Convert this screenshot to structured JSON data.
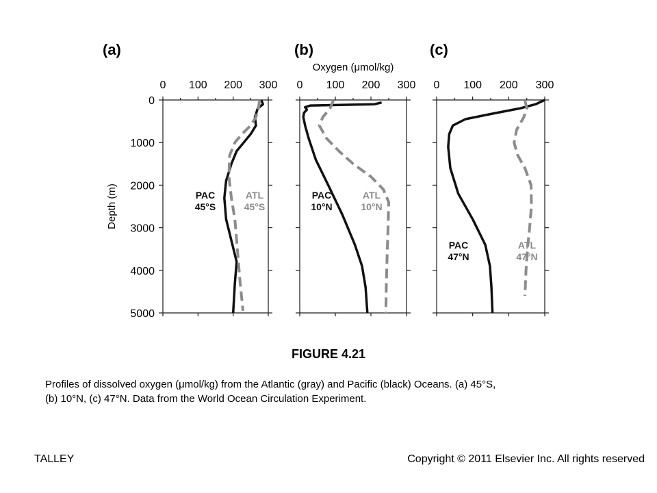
{
  "figure": {
    "title": "FIGURE 4.21",
    "caption_line1": "Profiles of dissolved oxygen (μmol/kg) from the Atlantic (gray) and Pacific (black) Oceans. (a) 45°S,",
    "caption_line2": "(b) 10°N, (c) 47°N. Data from the World Ocean Circulation Experiment.",
    "footer_left": "TALLEY",
    "footer_right": "Copyright © 2011 Elsevier Inc. All rights reserved"
  },
  "colors": {
    "pacific": "#111111",
    "atlantic": "#8c8c8c"
  },
  "chart_data": [
    {
      "type": "line",
      "panel": "(a)",
      "xlabel": "",
      "ylabel": "Depth (m)",
      "xlim": [
        0,
        300
      ],
      "ylim": [
        0,
        5000
      ],
      "y_inverted": true,
      "x_ticks": [
        "0",
        "100",
        "200",
        "300"
      ],
      "y_ticks": [
        "0",
        "1000",
        "2000",
        "3000",
        "4000",
        "5000"
      ],
      "series": [
        {
          "name": "PAC 45°S",
          "label_lines": [
            "PAC",
            "45°S"
          ],
          "style": "solid",
          "color": "#111111",
          "x": [
            280,
            285,
            270,
            262,
            265,
            250,
            230,
            210,
            195,
            180,
            175,
            180,
            195,
            210,
            205,
            200
          ],
          "y": [
            0,
            100,
            200,
            400,
            600,
            800,
            1000,
            1200,
            1500,
            1900,
            2300,
            2800,
            3300,
            3800,
            4300,
            5000
          ]
        },
        {
          "name": "ATL 45°S",
          "label_lines": [
            "ATL",
            "45°S"
          ],
          "style": "dashed",
          "color": "#8c8c8c",
          "x": [
            275,
            272,
            265,
            250,
            225,
            205,
            190,
            188,
            195,
            205,
            210,
            215,
            220,
            225,
            228
          ],
          "y": [
            0,
            200,
            400,
            600,
            800,
            1000,
            1300,
            1800,
            2300,
            2800,
            3300,
            3800,
            4300,
            4700,
            4950
          ]
        }
      ]
    },
    {
      "type": "line",
      "panel": "(b)",
      "xlabel": "Oxygen (μmol/kg)",
      "ylabel": "",
      "xlim": [
        0,
        300
      ],
      "ylim": [
        0,
        5000
      ],
      "y_inverted": true,
      "x_ticks": [
        "0",
        "100",
        "200",
        "300"
      ],
      "y_ticks": [],
      "series": [
        {
          "name": "PAC 10°N",
          "label_lines": [
            "PAC",
            "10°N"
          ],
          "style": "solid",
          "color": "#111111",
          "x": [
            230,
            210,
            30,
            15,
            20,
            12,
            10,
            15,
            25,
            45,
            80,
            120,
            155,
            175,
            185,
            190
          ],
          "y": [
            60,
            100,
            130,
            170,
            230,
            300,
            400,
            600,
            900,
            1400,
            2000,
            2700,
            3400,
            3900,
            4400,
            5000
          ]
        },
        {
          "name": "ATL 10°N",
          "label_lines": [
            "ATL",
            "10°N"
          ],
          "style": "dashed",
          "color": "#8c8c8c",
          "x": [
            95,
            85,
            65,
            55,
            75,
            110,
            150,
            200,
            235,
            250,
            248,
            245,
            243,
            242
          ],
          "y": [
            0,
            200,
            400,
            600,
            900,
            1200,
            1500,
            1800,
            2100,
            2400,
            3000,
            3800,
            4400,
            5000
          ]
        }
      ]
    },
    {
      "type": "line",
      "panel": "(c)",
      "xlabel": "",
      "ylabel": "",
      "xlim": [
        0,
        300
      ],
      "ylim": [
        0,
        5000
      ],
      "y_inverted": true,
      "x_ticks": [
        "0",
        "100",
        "200",
        "300"
      ],
      "y_ticks": [],
      "series": [
        {
          "name": "PAC 47°N",
          "label_lines": [
            "PAC",
            "47°N"
          ],
          "style": "solid",
          "color": "#111111",
          "x": [
            300,
            275,
            230,
            150,
            80,
            45,
            35,
            32,
            38,
            60,
            100,
            135,
            148,
            152,
            155
          ],
          "y": [
            0,
            100,
            200,
            330,
            450,
            600,
            800,
            1100,
            1600,
            2200,
            2800,
            3400,
            3900,
            4400,
            5000
          ]
        },
        {
          "name": "ATL 47°N",
          "label_lines": [
            "ATL",
            "47°N"
          ],
          "style": "dashed",
          "color": "#8c8c8c",
          "x": [
            245,
            250,
            242,
            232,
            222,
            215,
            225,
            245,
            262,
            263,
            258,
            252,
            248,
            245
          ],
          "y": [
            0,
            200,
            400,
            550,
            700,
            1000,
            1300,
            1600,
            2000,
            2500,
            3000,
            3500,
            4000,
            4600
          ]
        }
      ]
    }
  ]
}
